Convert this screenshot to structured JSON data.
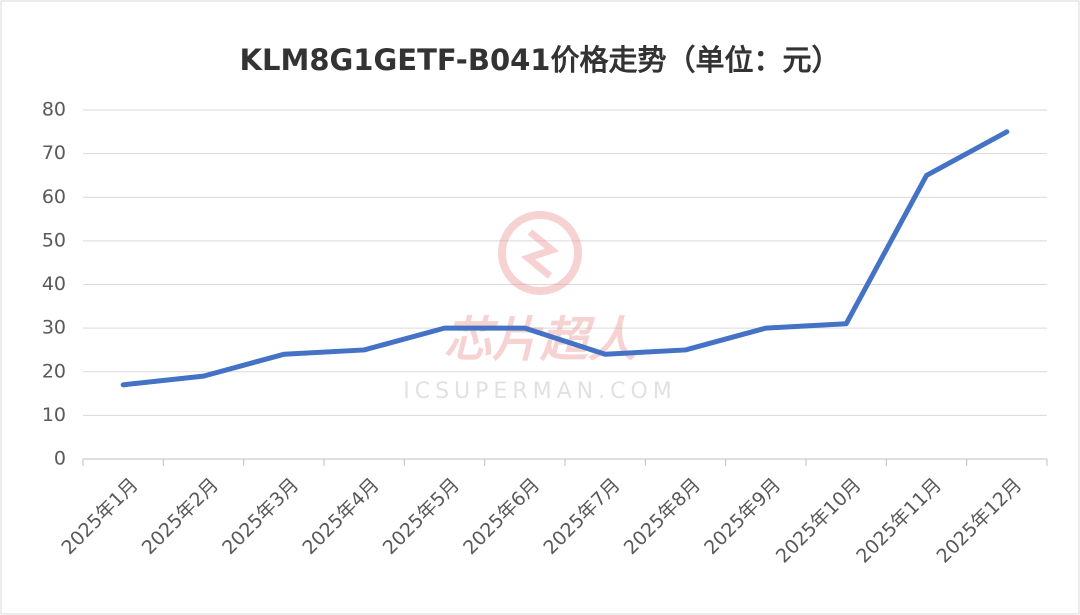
{
  "chart_data": {
    "type": "line",
    "title": "KLM8G1GETF-B041价格走势（单位：元）",
    "categories": [
      "2025年1月",
      "2025年2月",
      "2025年3月",
      "2025年4月",
      "2025年5月",
      "2025年6月",
      "2025年7月",
      "2025年8月",
      "2025年9月",
      "2025年10月",
      "2025年11月",
      "2025年12月"
    ],
    "series": [
      {
        "color": "#4472c4",
        "values": [
          17,
          19,
          24,
          25,
          30,
          30,
          24,
          25,
          30,
          31,
          65,
          75
        ]
      }
    ],
    "ylim": [
      0,
      80
    ],
    "yticks": [
      0,
      10,
      20,
      30,
      40,
      50,
      60,
      70,
      80
    ],
    "grid": true,
    "watermark": {
      "brand": "芯片超人",
      "site": "ICSUPERMAN.COM"
    }
  }
}
